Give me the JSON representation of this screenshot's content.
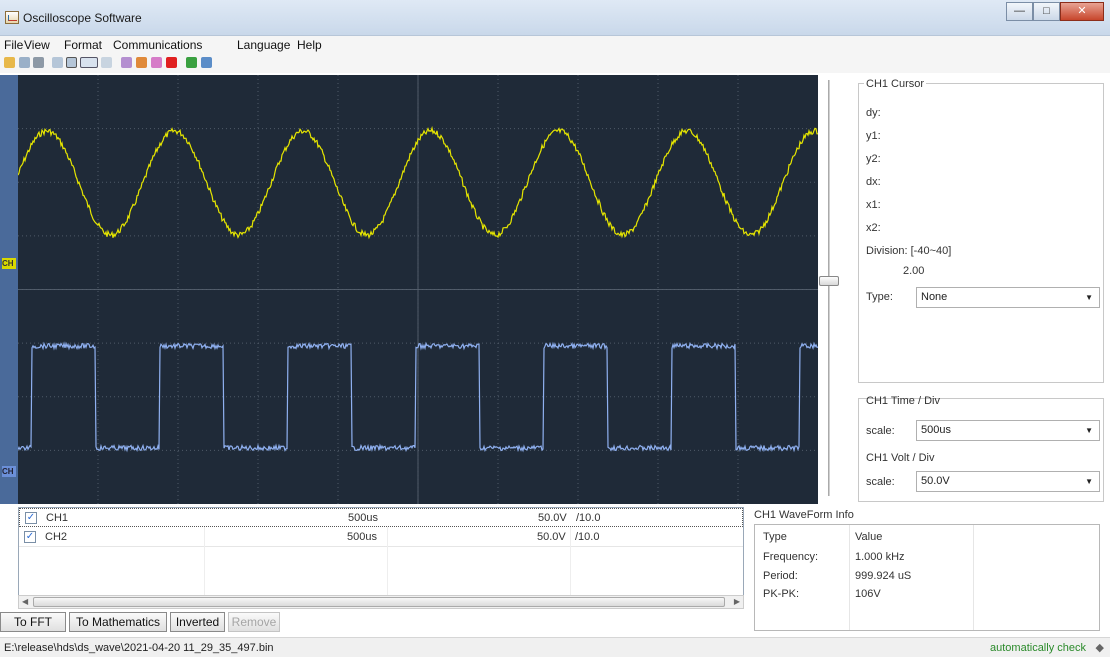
{
  "window": {
    "title": "Oscilloscope Software"
  },
  "menu": [
    "File",
    "View",
    "Format",
    "Communications",
    "Language",
    "Help"
  ],
  "toolbar_icons": [
    "open-icon",
    "save-icon",
    "print-icon",
    "layout-icon",
    "grid-icon",
    "dots-icon",
    "settings-icon",
    "export-icon",
    "capture-icon",
    "record-icon",
    "stop-icon",
    "run-icon",
    "sheet-icon"
  ],
  "scope": {
    "ch1_marker": "CH",
    "ch2_marker": "CH",
    "colors": {
      "background": "#1f2a38",
      "ch1": "#e6e600",
      "ch2": "#8fb0f0",
      "grid": "#55606e"
    }
  },
  "cursor_panel": {
    "title": "CH1 Cursor",
    "labels": [
      "dy:",
      "y1:",
      "y2:",
      "dx:",
      "x1:",
      "x2:"
    ],
    "division_label": "Division: [-40~40]",
    "division_value": "2.00",
    "type_label": "Type:",
    "type_value": "None"
  },
  "time_panel": {
    "title": "CH1 Time / Div",
    "scale_label": "scale:",
    "scale_value": "500us"
  },
  "volt_panel": {
    "title": "CH1 Volt / Div",
    "scale_label": "scale:",
    "scale_value": "50.0V"
  },
  "channels": [
    {
      "name": "CH1",
      "time": "500us",
      "volt": "50.0V",
      "probe": "/10.0",
      "checked": true
    },
    {
      "name": "CH2",
      "time": "500us",
      "volt": "50.0V",
      "probe": "/10.0",
      "checked": true
    }
  ],
  "buttons": {
    "fft": "To FFT",
    "math": "To Mathematics",
    "inverted": "Inverted",
    "remove": "Remove"
  },
  "waveform_info": {
    "title": "CH1 WaveForm Info",
    "headers": [
      "Type",
      "Value"
    ],
    "rows": [
      [
        "Frequency:",
        "1.000 kHz"
      ],
      [
        "Period:",
        "999.924 uS"
      ],
      [
        "PK-PK:",
        "106V"
      ]
    ]
  },
  "status": {
    "path": "E:\\release\\hds\\ds_wave\\2021-04-20 11_29_35_497.bin",
    "check": "automatically check"
  }
}
